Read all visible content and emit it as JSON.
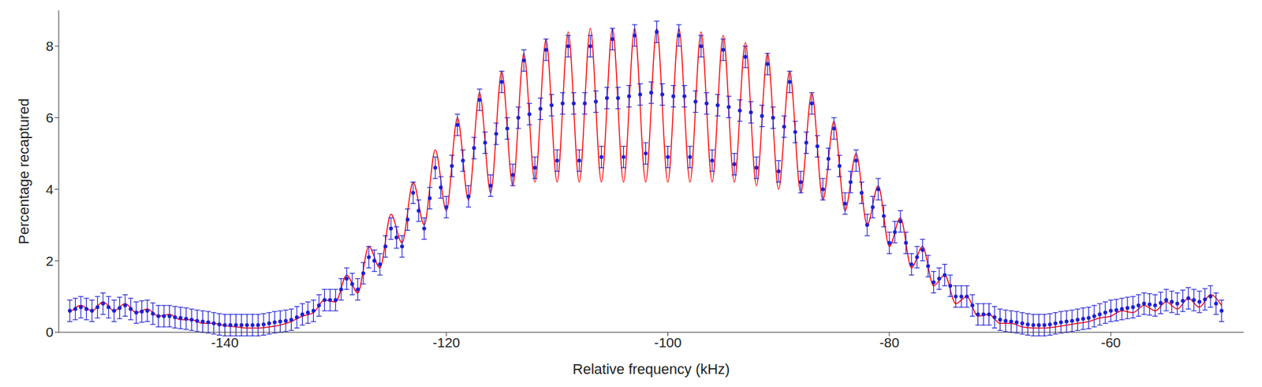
{
  "chart_data": {
    "type": "scatter",
    "x_label": "Relative frequency (kHz)",
    "y_label": "Percentage recaptured",
    "xlim": [
      -155,
      -48
    ],
    "xticks": [
      -140,
      -120,
      -100,
      -80,
      -60
    ],
    "ylim": [
      0,
      9
    ],
    "yticks": [
      0,
      2,
      4,
      6,
      8
    ],
    "grid": false,
    "series": [
      {
        "type": "line",
        "color": "#ff0000",
        "line_style": "solid",
        "x": [
          -154,
          -153,
          -152,
          -151,
          -150,
          -149,
          -148,
          -147,
          -146,
          -145,
          -144,
          -143,
          -142,
          -141,
          -140,
          -139,
          -138,
          -137,
          -136,
          -135,
          -134,
          -133,
          -132,
          -131,
          -130,
          -129,
          -128,
          -127,
          -126,
          -125,
          -124,
          -123,
          -122,
          -121,
          -120,
          -119,
          -118,
          -117,
          -116,
          -115,
          -114,
          -113,
          -112,
          -111,
          -110,
          -109,
          -108,
          -107,
          -106,
          -105,
          -104,
          -103,
          -102,
          -101,
          -100,
          -99,
          -98,
          -97,
          -96,
          -95,
          -94,
          -93,
          -92,
          -91,
          -90,
          -89,
          -88,
          -87,
          -86,
          -85,
          -84,
          -83,
          -82,
          -81,
          -80,
          -79,
          -78,
          -77,
          -76,
          -75,
          -74,
          -73,
          -72,
          -71,
          -70,
          -69,
          -68,
          -67,
          -66,
          -65,
          -64,
          -63,
          -62,
          -61,
          -60,
          -59,
          -58,
          -57,
          -56,
          -55,
          -54,
          -53,
          -52,
          -51,
          -50
        ],
        "values": [
          0.55,
          0.75,
          0.6,
          0.85,
          0.6,
          0.8,
          0.55,
          0.65,
          0.45,
          0.5,
          0.35,
          0.35,
          0.25,
          0.25,
          0.18,
          0.15,
          0.12,
          0.12,
          0.15,
          0.2,
          0.3,
          0.45,
          0.55,
          0.9,
          0.85,
          1.6,
          1.1,
          2.4,
          1.8,
          3.3,
          2.5,
          4.2,
          3.0,
          5.1,
          3.4,
          6.0,
          3.7,
          6.7,
          3.9,
          7.3,
          4.1,
          7.8,
          4.2,
          8.2,
          4.2,
          8.4,
          4.2,
          8.5,
          4.2,
          8.5,
          4.2,
          8.5,
          4.2,
          8.5,
          4.2,
          8.5,
          4.2,
          8.4,
          4.2,
          8.3,
          4.2,
          8.1,
          4.1,
          7.8,
          4.0,
          7.3,
          3.9,
          6.7,
          3.7,
          5.9,
          3.4,
          5.0,
          3.0,
          4.1,
          2.4,
          3.2,
          1.8,
          2.4,
          1.3,
          1.6,
          0.8,
          1.0,
          0.45,
          0.5,
          0.25,
          0.25,
          0.15,
          0.12,
          0.12,
          0.15,
          0.2,
          0.25,
          0.3,
          0.4,
          0.45,
          0.6,
          0.55,
          0.75,
          0.6,
          0.85,
          0.65,
          0.95,
          0.7,
          1.05,
          0.75
        ]
      },
      {
        "type": "scatter",
        "color": "#1f1fd6",
        "marker": "circle",
        "error": 0.3,
        "x": [
          -154,
          -153.5,
          -153,
          -152.5,
          -152,
          -151.5,
          -151,
          -150.5,
          -150,
          -149.5,
          -149,
          -148.5,
          -148,
          -147.5,
          -147,
          -146.5,
          -146,
          -145.5,
          -145,
          -144.5,
          -144,
          -143.5,
          -143,
          -142.5,
          -142,
          -141.5,
          -141,
          -140.5,
          -140,
          -139.5,
          -139,
          -138.5,
          -138,
          -137.5,
          -137,
          -136.5,
          -136,
          -135.5,
          -135,
          -134.5,
          -134,
          -133.5,
          -133,
          -132.5,
          -132,
          -131.5,
          -131,
          -130.5,
          -130,
          -129.5,
          -129,
          -128.5,
          -128,
          -127.5,
          -127,
          -126.5,
          -126,
          -125.5,
          -125,
          -124.5,
          -124,
          -123.5,
          -123,
          -122.5,
          -122,
          -121.5,
          -121,
          -120.5,
          -120,
          -119.5,
          -119,
          -118.5,
          -118,
          -117.5,
          -117,
          -116.5,
          -116,
          -115.5,
          -115,
          -114.5,
          -114,
          -113.5,
          -113,
          -112.5,
          -112,
          -111.5,
          -111,
          -110.5,
          -110,
          -109.5,
          -109,
          -108.5,
          -108,
          -107.5,
          -107,
          -106.5,
          -106,
          -105.5,
          -105,
          -104.5,
          -104,
          -103.5,
          -103,
          -102.5,
          -102,
          -101.5,
          -101,
          -100.5,
          -100,
          -99.5,
          -99,
          -98.5,
          -98,
          -97.5,
          -97,
          -96.5,
          -96,
          -95.5,
          -95,
          -94.5,
          -94,
          -93.5,
          -93,
          -92.5,
          -92,
          -91.5,
          -91,
          -90.5,
          -90,
          -89.5,
          -89,
          -88.5,
          -88,
          -87.5,
          -87,
          -86.5,
          -86,
          -85.5,
          -85,
          -84.5,
          -84,
          -83.5,
          -83,
          -82.5,
          -82,
          -81.5,
          -81,
          -80.5,
          -80,
          -79.5,
          -79,
          -78.5,
          -78,
          -77.5,
          -77,
          -76.5,
          -76,
          -75.5,
          -75,
          -74.5,
          -74,
          -73.5,
          -73,
          -72.5,
          -72,
          -71.5,
          -71,
          -70.5,
          -70,
          -69.5,
          -69,
          -68.5,
          -68,
          -67.5,
          -67,
          -66.5,
          -66,
          -65.5,
          -65,
          -64.5,
          -64,
          -63.5,
          -63,
          -62.5,
          -62,
          -61.5,
          -61,
          -60.5,
          -60,
          -59.5,
          -59,
          -58.5,
          -58,
          -57.5,
          -57,
          -56.5,
          -56,
          -55.5,
          -55,
          -54.5,
          -54,
          -53.5,
          -53,
          -52.5,
          -52,
          -51.5,
          -51,
          -50.5,
          -50
        ],
        "values": [
          0.6,
          0.65,
          0.7,
          0.65,
          0.6,
          0.7,
          0.8,
          0.7,
          0.6,
          0.68,
          0.75,
          0.65,
          0.55,
          0.58,
          0.6,
          0.52,
          0.45,
          0.45,
          0.45,
          0.42,
          0.4,
          0.38,
          0.35,
          0.32,
          0.3,
          0.28,
          0.25,
          0.22,
          0.2,
          0.2,
          0.2,
          0.2,
          0.2,
          0.2,
          0.2,
          0.22,
          0.25,
          0.28,
          0.3,
          0.32,
          0.35,
          0.42,
          0.5,
          0.55,
          0.6,
          0.75,
          0.9,
          0.9,
          0.9,
          1.2,
          1.5,
          1.35,
          1.2,
          1.65,
          2.1,
          2.0,
          1.9,
          2.4,
          2.9,
          2.65,
          2.4,
          3.15,
          3.9,
          3.4,
          2.9,
          3.75,
          4.6,
          4.05,
          3.5,
          4.65,
          5.8,
          4.8,
          3.8,
          5.15,
          6.5,
          5.3,
          4.1,
          5.55,
          7.0,
          5.7,
          4.4,
          6.0,
          7.6,
          6.1,
          4.6,
          6.25,
          7.9,
          6.35,
          4.8,
          6.4,
          8.0,
          6.4,
          4.8,
          6.4,
          8.0,
          6.45,
          4.9,
          6.55,
          8.2,
          6.55,
          4.9,
          6.6,
          8.3,
          6.65,
          5.0,
          6.7,
          8.4,
          6.65,
          4.9,
          6.6,
          8.3,
          6.6,
          4.9,
          6.45,
          8.0,
          6.4,
          4.8,
          6.35,
          7.9,
          6.3,
          4.7,
          6.2,
          7.7,
          6.15,
          4.6,
          6.05,
          7.5,
          6.0,
          4.5,
          5.75,
          7.0,
          5.6,
          4.2,
          5.3,
          6.4,
          5.2,
          4.0,
          4.85,
          5.7,
          4.65,
          3.6,
          4.2,
          4.8,
          3.9,
          3.0,
          3.5,
          4.0,
          3.25,
          2.5,
          2.8,
          3.1,
          2.5,
          1.9,
          2.1,
          2.3,
          1.85,
          1.4,
          1.5,
          1.6,
          1.3,
          1.0,
          1.0,
          1.0,
          0.75,
          0.5,
          0.5,
          0.5,
          0.42,
          0.35,
          0.32,
          0.3,
          0.28,
          0.25,
          0.22,
          0.2,
          0.2,
          0.2,
          0.22,
          0.25,
          0.28,
          0.3,
          0.32,
          0.35,
          0.38,
          0.4,
          0.45,
          0.5,
          0.55,
          0.6,
          0.62,
          0.65,
          0.68,
          0.7,
          0.75,
          0.8,
          0.78,
          0.75,
          0.82,
          0.9,
          0.85,
          0.8,
          0.88,
          0.95,
          0.9,
          0.85,
          0.92,
          1.0,
          0.8,
          0.6
        ]
      }
    ]
  }
}
